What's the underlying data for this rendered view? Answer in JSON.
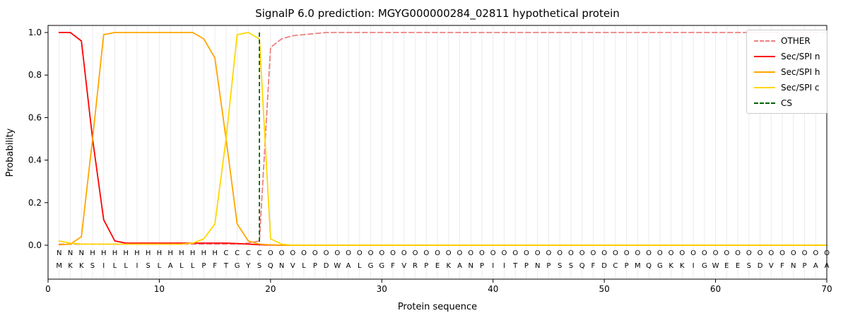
{
  "chart_data": {
    "type": "line",
    "title": "SignalP 6.0 prediction: MGYG000000284_02811 hypothetical protein",
    "xlabel": "Protein sequence",
    "ylabel": "Probability",
    "xlim": [
      0,
      71
    ],
    "ylim": [
      0.0,
      1.05
    ],
    "x_ticks": [
      0,
      10,
      20,
      30,
      40,
      50,
      60,
      70
    ],
    "y_ticks": [
      0.0,
      0.2,
      0.4,
      0.6,
      0.8,
      1.0
    ],
    "grid": "vertical-per-residue",
    "grid_color": "#ebebeb",
    "legend_position": "upper right",
    "sequence": "MKKSILLISLALLPFTGYSQNVLPDWALGGFVRPEKANPIITPNPSSQFDCPMQGKKIGWEESDVFNPAA",
    "regions": "NNNHHHHHHHHHHHHCCCCOOOOOOOOOOOOOOOOOOOOOOOOOOOOOOOOOOOOOOOOOOOOOOOOOOO",
    "region_colors": {
      "N": "#ff0000",
      "H": "#ffa500",
      "C": "#ffd700",
      "O": "#999999"
    },
    "sequence_color": "#000000",
    "cs": {
      "label": "CS",
      "position": 19,
      "color": "#006400",
      "dash": true
    },
    "series": [
      {
        "name": "OTHER",
        "color": "#f08080",
        "dash": true,
        "values": [
          0.005,
          0.005,
          0.005,
          0.005,
          0.005,
          0.005,
          0.005,
          0.005,
          0.005,
          0.005,
          0.005,
          0.005,
          0.005,
          0.005,
          0.005,
          0.005,
          0.005,
          0.01,
          0.02,
          0.93,
          0.97,
          0.985,
          0.99,
          0.995,
          1.0,
          1.0,
          1.0,
          1.0,
          1.0,
          1.0,
          1.0,
          1.0,
          1.0,
          1.0,
          1.0,
          1.0,
          1.0,
          1.0,
          1.0,
          1.0,
          1.0,
          1.0,
          1.0,
          1.0,
          1.0,
          1.0,
          1.0,
          1.0,
          1.0,
          1.0,
          1.0,
          1.0,
          1.0,
          1.0,
          1.0,
          1.0,
          1.0,
          1.0,
          1.0,
          1.0,
          1.0,
          1.0,
          1.0,
          1.0,
          1.0,
          1.0,
          1.0,
          1.0,
          1.0,
          1.0
        ]
      },
      {
        "name": "Sec/SPI n",
        "color": "#ff0000",
        "dash": false,
        "values": [
          1.0,
          1.0,
          0.96,
          0.5,
          0.12,
          0.02,
          0.01,
          0.01,
          0.01,
          0.01,
          0.01,
          0.01,
          0.01,
          0.01,
          0.01,
          0.01,
          0.008,
          0.005,
          0.002,
          0.001,
          0,
          0,
          0,
          0,
          0,
          0,
          0,
          0,
          0,
          0,
          0,
          0,
          0,
          0,
          0,
          0,
          0,
          0,
          0,
          0,
          0,
          0,
          0,
          0,
          0,
          0,
          0,
          0,
          0,
          0,
          0,
          0,
          0,
          0,
          0,
          0,
          0,
          0,
          0,
          0,
          0,
          0,
          0,
          0,
          0,
          0,
          0,
          0,
          0,
          0
        ]
      },
      {
        "name": "Sec/SPI h",
        "color": "#ffa500",
        "dash": false,
        "values": [
          0.002,
          0.005,
          0.04,
          0.5,
          0.99,
          1.0,
          1.0,
          1.0,
          1.0,
          1.0,
          1.0,
          1.0,
          1.0,
          0.97,
          0.88,
          0.5,
          0.1,
          0.02,
          0.005,
          0.002,
          0,
          0,
          0,
          0,
          0,
          0,
          0,
          0,
          0,
          0,
          0,
          0,
          0,
          0,
          0,
          0,
          0,
          0,
          0,
          0,
          0,
          0,
          0,
          0,
          0,
          0,
          0,
          0,
          0,
          0,
          0,
          0,
          0,
          0,
          0,
          0,
          0,
          0,
          0,
          0,
          0,
          0,
          0,
          0,
          0,
          0,
          0,
          0,
          0,
          0
        ]
      },
      {
        "name": "Sec/SPI c",
        "color": "#ffd700",
        "dash": false,
        "values": [
          0.02,
          0.01,
          0.005,
          0.005,
          0.005,
          0.005,
          0.005,
          0.005,
          0.005,
          0.005,
          0.005,
          0.005,
          0.01,
          0.03,
          0.1,
          0.5,
          0.99,
          1.0,
          0.97,
          0.03,
          0.005,
          0,
          0,
          0,
          0,
          0,
          0,
          0,
          0,
          0,
          0,
          0,
          0,
          0,
          0,
          0,
          0,
          0,
          0,
          0,
          0,
          0,
          0,
          0,
          0,
          0,
          0,
          0,
          0,
          0,
          0,
          0,
          0,
          0,
          0,
          0,
          0,
          0,
          0,
          0,
          0,
          0,
          0,
          0,
          0,
          0,
          0,
          0,
          0,
          0
        ]
      }
    ],
    "legend": [
      {
        "label": "OTHER",
        "color": "#f08080",
        "dash": true
      },
      {
        "label": "Sec/SPI n",
        "color": "#ff0000",
        "dash": false
      },
      {
        "label": "Sec/SPI h",
        "color": "#ffa500",
        "dash": false
      },
      {
        "label": "Sec/SPI c",
        "color": "#ffd700",
        "dash": false
      },
      {
        "label": "CS",
        "color": "#006400",
        "dash": true
      }
    ]
  }
}
